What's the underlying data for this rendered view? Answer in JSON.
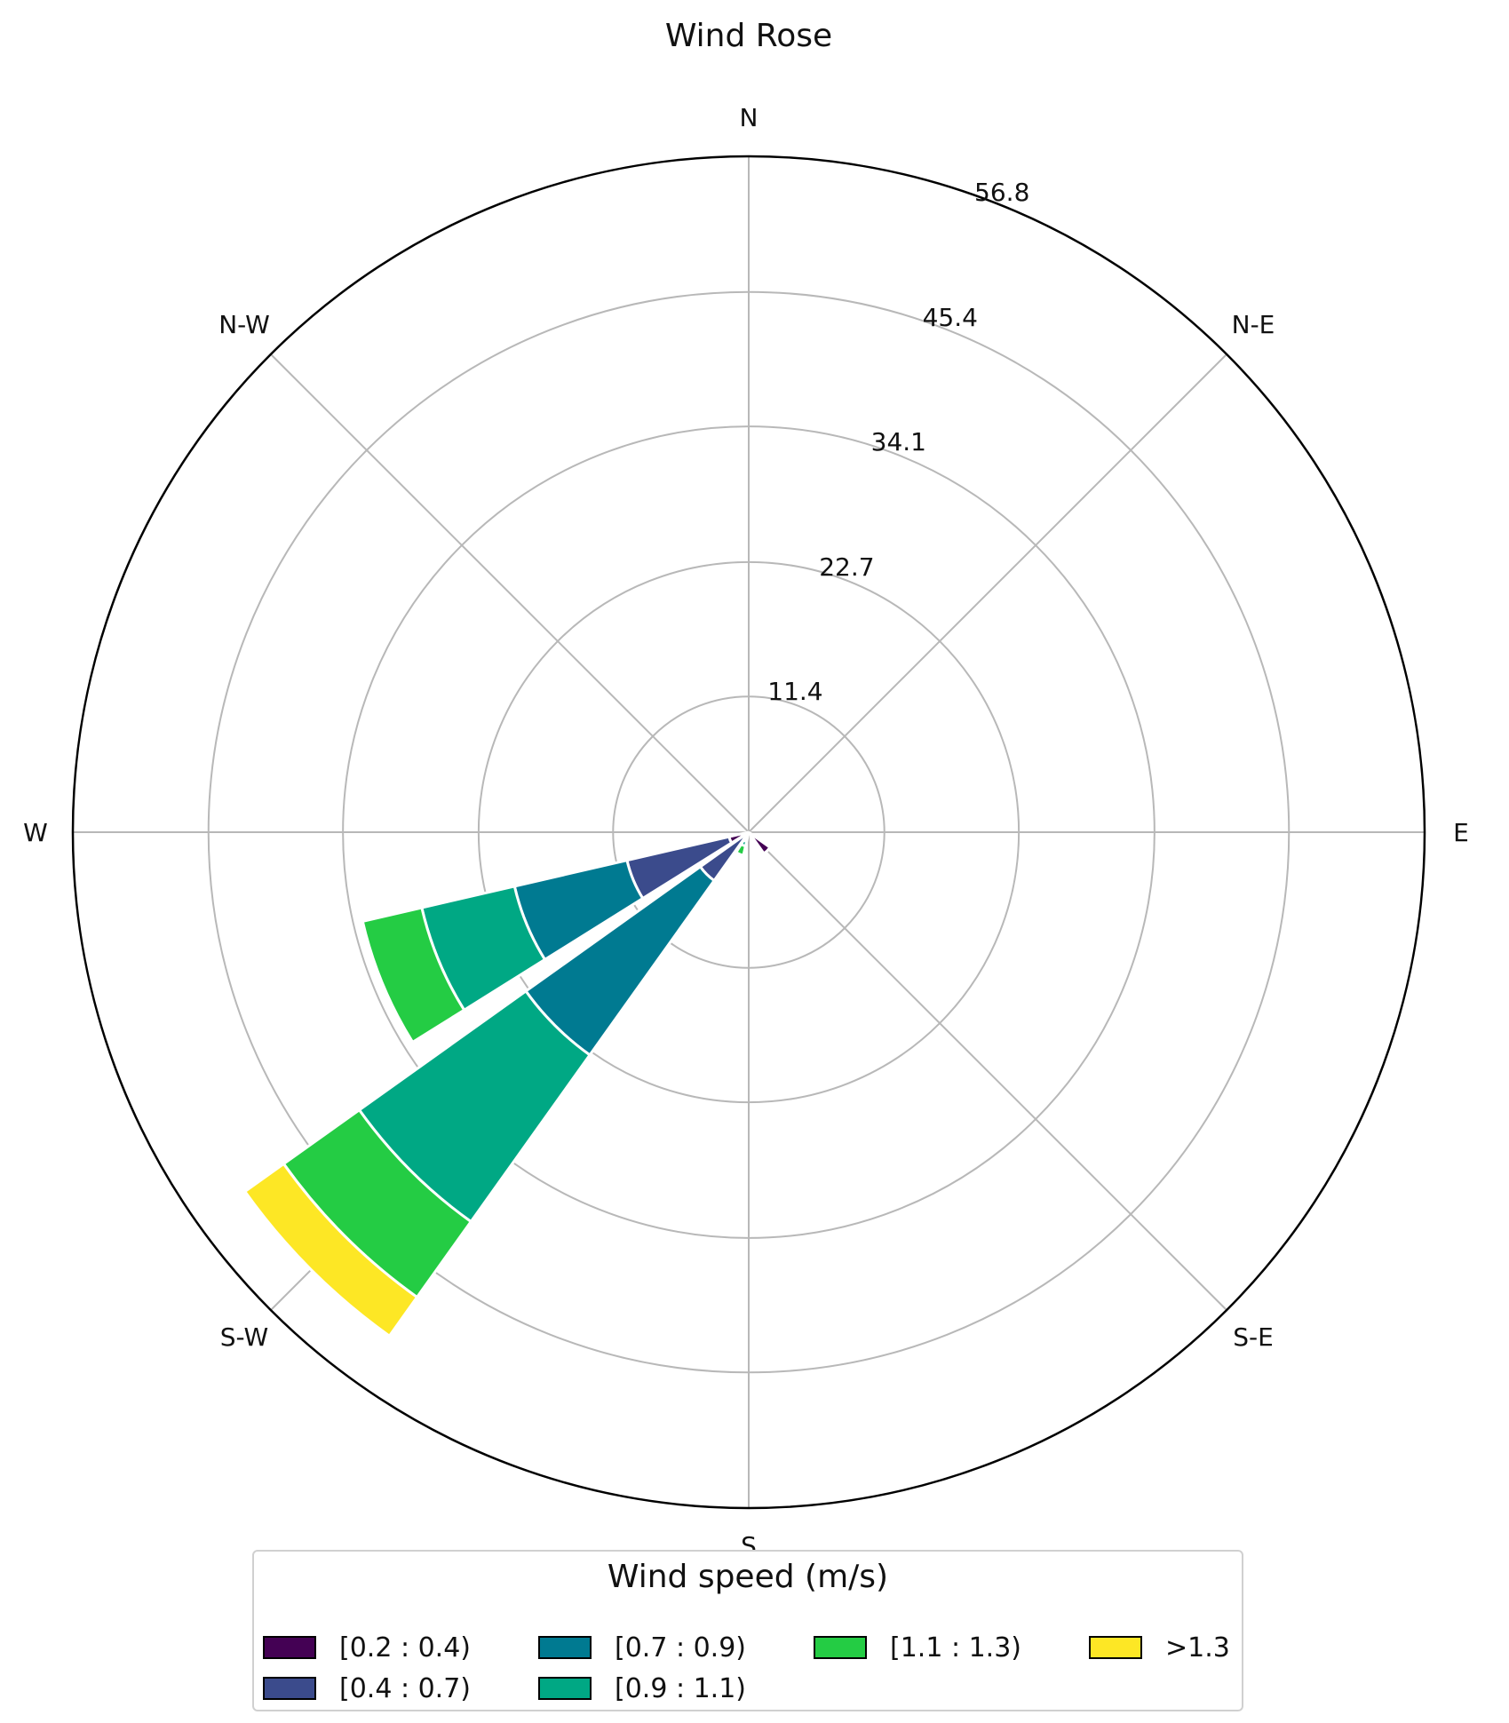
{
  "chart_data": {
    "type": "wind-rose",
    "title": "Wind Rose",
    "directions": [
      "N",
      "N-E",
      "E",
      "S-E",
      "S",
      "S-W",
      "W",
      "N-W"
    ],
    "radial_ticks": [
      "11.4",
      "22.7",
      "34.1",
      "45.4",
      "56.8"
    ],
    "radial_max": 56.8,
    "grid": true,
    "legend": {
      "title": "Wind speed (m/s)",
      "placement": "bottom"
    },
    "bins": [
      {
        "label": "[0.2 : 0.4)",
        "color": "#440154"
      },
      {
        "label": "[0.4 : 0.7)",
        "color": "#3b4b8c"
      },
      {
        "label": "[0.7 : 0.9)",
        "color": "#007a91"
      },
      {
        "label": "[0.9 : 1.1)",
        "color": "#00a884"
      },
      {
        "label": "[1.1 : 1.3)",
        "color": "#24cc44"
      },
      {
        "label": ">1.3",
        "color": "#fde725"
      }
    ],
    "sectors": [
      {
        "center_deg": 247.5,
        "cumulative": [
          1.7,
          10.5,
          20.2,
          28.2,
          33.3
        ]
      },
      {
        "center_deg": 225,
        "cumulative": [
          0.2,
          5.0,
          23.0,
          40.2,
          48.0,
          52.0
        ]
      },
      {
        "center_deg": 202.5,
        "cumulative": [
          0.3,
          0.5,
          0.8,
          1.2,
          2.0
        ]
      },
      {
        "center_deg": 135,
        "cumulative": [
          2.2
        ]
      }
    ]
  }
}
